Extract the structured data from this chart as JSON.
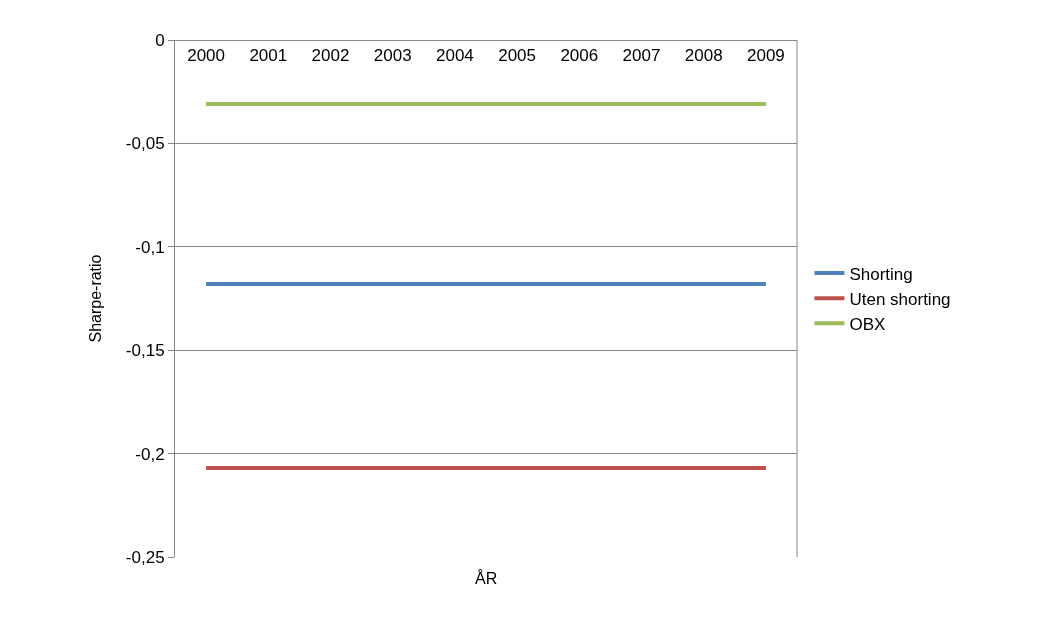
{
  "chart_data": {
    "type": "line",
    "xlabel": "ÅR",
    "ylabel": "Sharpe-ratio",
    "categories": [
      "2000",
      "2001",
      "2002",
      "2003",
      "2004",
      "2005",
      "2006",
      "2007",
      "2008",
      "2009"
    ],
    "series": [
      {
        "name": "Shorting",
        "color": "#4f81bd",
        "values": [
          -0.118,
          -0.118,
          -0.118,
          -0.118,
          -0.118,
          -0.118,
          -0.118,
          -0.118,
          -0.118,
          -0.118
        ]
      },
      {
        "name": "Uten shorting",
        "color": "#c0504d",
        "values": [
          -0.207,
          -0.207,
          -0.207,
          -0.207,
          -0.207,
          -0.207,
          -0.207,
          -0.207,
          -0.207,
          -0.207
        ]
      },
      {
        "name": "OBX",
        "color": "#9bbb59",
        "values": [
          -0.031,
          -0.031,
          -0.031,
          -0.031,
          -0.031,
          -0.031,
          -0.031,
          -0.031,
          -0.031,
          -0.031
        ]
      }
    ],
    "ylim": [
      -0.25,
      0
    ],
    "yticks": [
      {
        "value": 0,
        "label": "0"
      },
      {
        "value": -0.05,
        "label": "-0,05"
      },
      {
        "value": -0.1,
        "label": "-0,1"
      },
      {
        "value": -0.15,
        "label": "-0,15"
      },
      {
        "value": -0.2,
        "label": "-0,2"
      },
      {
        "value": -0.25,
        "label": "-0,25"
      }
    ],
    "grid": "y",
    "legend": "right",
    "marker": "none",
    "line_style": "solid"
  }
}
